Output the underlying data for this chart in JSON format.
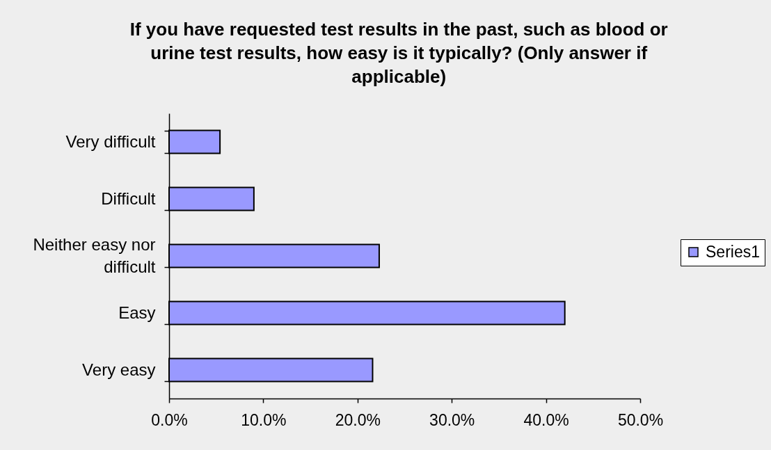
{
  "chart_data": {
    "type": "bar",
    "orientation": "horizontal",
    "title": "If you have requested test results in the past, such as blood or urine test results, how easy is it typically? (Only answer if applicable)",
    "categories": [
      "Very difficult",
      "Difficult",
      "Neither easy nor difficult",
      "Easy",
      "Very easy"
    ],
    "series": [
      {
        "name": "Series1",
        "color": "#9999ff",
        "values": [
          5.4,
          9.0,
          22.3,
          42.0,
          21.6
        ]
      }
    ],
    "xlim": [
      0,
      50
    ],
    "xticks": [
      {
        "value": 0,
        "label": "0.0%"
      },
      {
        "value": 10,
        "label": "10.0%"
      },
      {
        "value": 20,
        "label": "20.0%"
      },
      {
        "value": 30,
        "label": "30.0%"
      },
      {
        "value": 40,
        "label": "40.0%"
      },
      {
        "value": 50,
        "label": "50.0%"
      }
    ],
    "grid": false,
    "legend": "right"
  }
}
